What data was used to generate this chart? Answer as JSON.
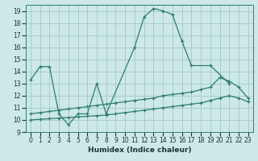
{
  "xlabel": "Humidex (Indice chaleur)",
  "background_color": "#cce8e8",
  "grid_color": "#aacccc",
  "line_color": "#2d7d6e",
  "xlim": [
    -0.5,
    23.5
  ],
  "ylim": [
    9.0,
    19.5
  ],
  "xticks": [
    0,
    1,
    2,
    3,
    4,
    5,
    6,
    7,
    8,
    9,
    10,
    11,
    12,
    13,
    14,
    15,
    16,
    17,
    18,
    19,
    20,
    21,
    22,
    23
  ],
  "yticks": [
    9,
    10,
    11,
    12,
    13,
    14,
    15,
    16,
    17,
    18,
    19
  ],
  "seg_main": [
    [
      [
        0,
        1,
        2
      ],
      [
        13.3,
        14.4,
        14.4
      ]
    ],
    [
      [
        3,
        4,
        5,
        6,
        7,
        8
      ],
      [
        10.5,
        9.6,
        10.5,
        10.5,
        13.0,
        10.5
      ]
    ],
    [
      [
        11,
        12,
        13,
        14,
        15,
        16,
        17
      ],
      [
        16.0,
        18.5,
        19.2,
        19.0,
        18.7,
        16.5,
        14.5
      ]
    ],
    [
      [
        19,
        21
      ],
      [
        14.5,
        13.0
      ]
    ]
  ],
  "seg_connect": [
    [
      [
        0,
        2
      ],
      [
        13.3,
        14.4
      ]
    ],
    [
      [
        8,
        11
      ],
      [
        10.5,
        16.0
      ]
    ]
  ],
  "line2_x": [
    0,
    1,
    2,
    3,
    4,
    5,
    6,
    7,
    8,
    9,
    10,
    11,
    12,
    13,
    14,
    15,
    16,
    17,
    18,
    19,
    20,
    21,
    22,
    23
  ],
  "line2_y": [
    10.5,
    10.6,
    10.7,
    10.8,
    10.9,
    11.0,
    11.1,
    11.2,
    11.3,
    11.4,
    11.5,
    11.6,
    11.7,
    11.8,
    12.0,
    12.1,
    12.2,
    12.3,
    12.5,
    12.7,
    13.5,
    13.2,
    12.7,
    11.8
  ],
  "line3_x": [
    0,
    1,
    2,
    3,
    4,
    5,
    6,
    7,
    8,
    9,
    10,
    11,
    12,
    13,
    14,
    15,
    16,
    17,
    18,
    19,
    20,
    21,
    22,
    23
  ],
  "line3_y": [
    10.0,
    10.05,
    10.1,
    10.15,
    10.2,
    10.25,
    10.3,
    10.35,
    10.4,
    10.5,
    10.6,
    10.7,
    10.8,
    10.9,
    11.0,
    11.1,
    11.2,
    11.3,
    11.4,
    11.6,
    11.8,
    12.0,
    11.8,
    11.5
  ]
}
